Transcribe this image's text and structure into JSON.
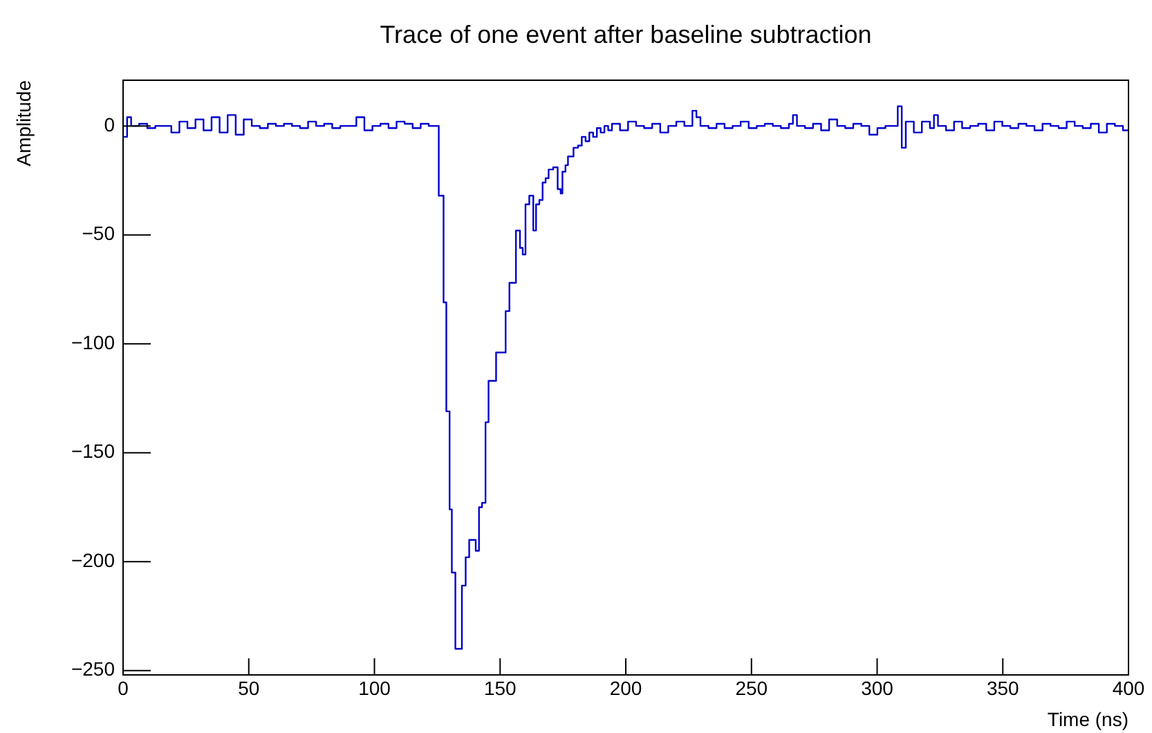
{
  "chart_data": {
    "type": "step",
    "title": "Trace of one event after baseline subtraction",
    "xlabel": "Time (ns)",
    "ylabel": "Amplitude",
    "xlim": [
      0,
      400
    ],
    "xticks": [
      0,
      50,
      100,
      150,
      200,
      250,
      300,
      350,
      400
    ],
    "ylim": [
      -252,
      21
    ],
    "yticks": [
      -250,
      -200,
      -150,
      -100,
      -50,
      0
    ],
    "grid": false,
    "legend": false,
    "series": [
      {
        "color": "#0000cc",
        "x": [
          0,
          1.6,
          3.2,
          6.4,
          9.6,
          12.8,
          16,
          19.2,
          22.4,
          25.6,
          28.8,
          32,
          35.2,
          38.4,
          41.6,
          44.8,
          48,
          51.2,
          54.4,
          57.6,
          60.8,
          64,
          67.2,
          70.4,
          73.6,
          76.8,
          80,
          83.2,
          86.4,
          89.6,
          92.8,
          96,
          99.2,
          102.4,
          105.6,
          108.8,
          112,
          115.2,
          118.4,
          121.6,
          124,
          125.6,
          127.5,
          128.6,
          129.9,
          130.8,
          132.2,
          134.8,
          136.3,
          137.7,
          140.3,
          141.6,
          142.8,
          144.2,
          145.4,
          148.4,
          152.2,
          153.7,
          156.3,
          157.9,
          159,
          160.1,
          161.6,
          163.2,
          164.3,
          165.6,
          166.9,
          168.1,
          169.3,
          171.1,
          172.9,
          174.1,
          174.8,
          176,
          177,
          179.2,
          181,
          182.5,
          184,
          185.5,
          187,
          188.5,
          190,
          191.5,
          193,
          194.5,
          197.7,
          200.9,
          204.1,
          207.3,
          210.5,
          213.7,
          216.9,
          220.1,
          223.3,
          226.5,
          228.1,
          229.7,
          232.9,
          236.1,
          239.3,
          242.5,
          245.7,
          248.9,
          252.1,
          255.3,
          258.5,
          261.7,
          264.9,
          266.5,
          268.1,
          271.3,
          274.5,
          277.7,
          280.9,
          284.1,
          287.3,
          290.5,
          293.7,
          296.9,
          300.1,
          303.3,
          306.5,
          308.2,
          309.8,
          311.4,
          314.6,
          317.8,
          321,
          322.6,
          324.2,
          327.4,
          330.6,
          333.8,
          337,
          340.2,
          343.4,
          346.6,
          349.8,
          353,
          356.2,
          359.4,
          362.6,
          365.8,
          369,
          372.2,
          375.4,
          378.6,
          381.8,
          385,
          388.2,
          391.4,
          394.6,
          397.8,
          400
        ],
        "values": [
          -5,
          4,
          0,
          1,
          -1,
          0,
          0,
          -3,
          2,
          -1,
          3,
          -2,
          4,
          -3,
          5,
          -4,
          3,
          0,
          -1,
          1,
          0,
          1,
          0,
          -1,
          2,
          0,
          1,
          -1,
          0,
          0,
          4,
          -2,
          0,
          1,
          -1,
          2,
          1,
          -1,
          1,
          0,
          0,
          -32,
          -81,
          -131,
          -176,
          -205,
          -240,
          -211,
          -198,
          -190,
          -195,
          -175,
          -173,
          -136,
          -117,
          -104,
          -85,
          -72,
          -48,
          -56,
          -59,
          -36,
          -32,
          -48,
          -36,
          -34,
          -26,
          -24,
          -20,
          -19,
          -29,
          -31,
          -21,
          -18,
          -14,
          -10,
          -9,
          -5,
          -7,
          -3,
          -5,
          -1,
          -3,
          0,
          -2,
          1,
          -2,
          2,
          0,
          -1,
          1,
          -3,
          0,
          2,
          0,
          7,
          4,
          0,
          -1,
          1,
          -1,
          0,
          2,
          -1,
          0,
          1,
          0,
          -1,
          1,
          5,
          0,
          -1,
          1,
          -2,
          3,
          0,
          -1,
          1,
          0,
          -4,
          -1,
          0,
          0,
          9,
          -10,
          2,
          -3,
          2,
          -1,
          5,
          0,
          -2,
          2,
          -1,
          0,
          1,
          -2,
          2,
          0,
          -1,
          1,
          0,
          -2,
          1,
          0,
          -1,
          2,
          0,
          -1,
          1,
          -3,
          1,
          0,
          -2,
          -2
        ]
      }
    ]
  }
}
